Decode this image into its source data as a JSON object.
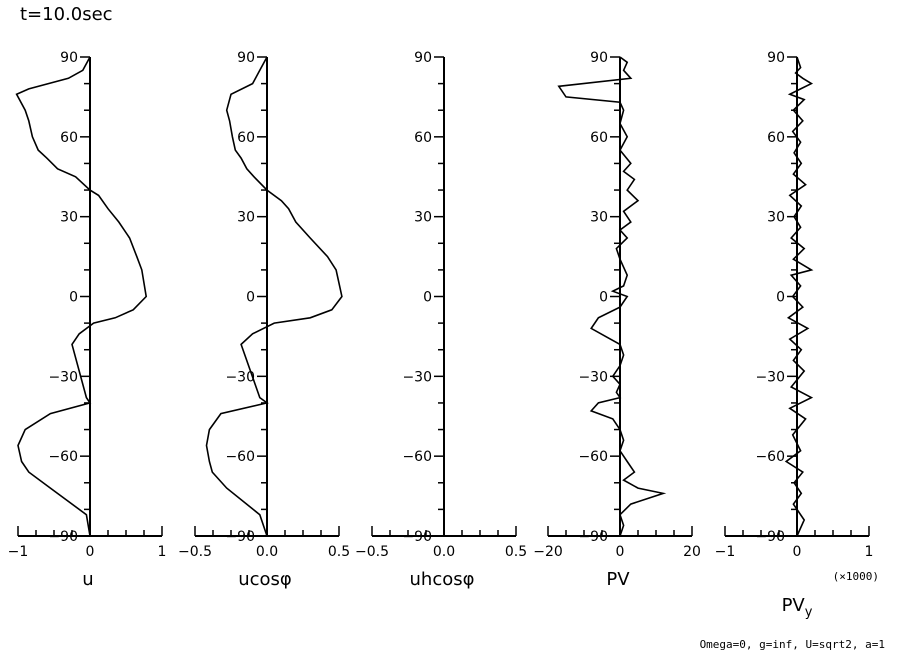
{
  "title": "t=10.0sec",
  "footer_note": "Omega=0, g=inf, U=sqrt2, a=1",
  "chart_data": [
    {
      "type": "line",
      "xlabel": "u",
      "xlim": [
        -1,
        1
      ],
      "xticks": [
        -1,
        0,
        1
      ],
      "xtick_labels": [
        "−1",
        "0",
        "1"
      ],
      "ylim": [
        -90,
        90
      ],
      "yticks": [
        -90,
        -60,
        -30,
        0,
        30,
        60,
        90
      ],
      "ytick_labels": [
        "−90",
        "−60",
        "−30",
        "0",
        "30",
        "60",
        "90"
      ],
      "x_scale_note": "",
      "series": [
        {
          "x": [
            0,
            -0.1,
            -0.3,
            -0.85,
            -1.02,
            -0.9,
            -0.85,
            -0.8,
            -0.72,
            -0.6,
            -0.45,
            -0.2,
            0,
            0.12,
            0.25,
            0.4,
            0.55,
            0.65,
            0.72,
            0.78,
            0.6,
            0.35,
            0.05,
            -0.15,
            -0.25,
            -0.05,
            0,
            -0.55,
            -0.9,
            -1.0,
            -0.95,
            -0.85,
            -0.55,
            -0.05,
            0
          ],
          "y": [
            90,
            85,
            82,
            78,
            76,
            70,
            66,
            60,
            55,
            52,
            48,
            45,
            40,
            38,
            33,
            28,
            22,
            15,
            10,
            0,
            -5,
            -8,
            -10,
            -14,
            -18,
            -38,
            -40,
            -44,
            -50,
            -56,
            -62,
            -66,
            -72,
            -82,
            -90
          ]
        }
      ]
    },
    {
      "type": "line",
      "xlabel": "ucosφ",
      "xlim": [
        -0.5,
        0.5
      ],
      "xticks": [
        -0.5,
        0.0,
        0.5
      ],
      "xtick_labels": [
        "−0.5",
        "0.0",
        "0.5"
      ],
      "ylim": [
        -90,
        90
      ],
      "yticks": [
        -90,
        -60,
        -30,
        0,
        30,
        60,
        90
      ],
      "ytick_labels": [
        "−90",
        "−60",
        "−30",
        "0",
        "30",
        "60",
        "90"
      ],
      "x_scale_note": "",
      "series": [
        {
          "x": [
            0,
            -0.05,
            -0.1,
            -0.25,
            -0.28,
            -0.26,
            -0.24,
            -0.22,
            -0.18,
            -0.14,
            -0.09,
            0,
            0.1,
            0.15,
            0.2,
            0.3,
            0.42,
            0.48,
            0.5,
            0.52,
            0.45,
            0.3,
            0.05,
            -0.1,
            -0.18,
            -0.05,
            0,
            -0.32,
            -0.4,
            -0.42,
            -0.4,
            -0.38,
            -0.28,
            -0.05,
            0
          ],
          "y": [
            90,
            85,
            80,
            76,
            70,
            66,
            60,
            55,
            52,
            48,
            45,
            40,
            36,
            33,
            28,
            22,
            15,
            10,
            5,
            0,
            -5,
            -8,
            -10,
            -14,
            -18,
            -38,
            -40,
            -44,
            -50,
            -56,
            -62,
            -66,
            -72,
            -82,
            -90
          ]
        }
      ]
    },
    {
      "type": "line",
      "xlabel": "uhcosφ",
      "xlim": [
        -0.5,
        0.5
      ],
      "xticks": [
        -0.5,
        0.0,
        0.5
      ],
      "xtick_labels": [
        "−0.5",
        "0.0",
        "0.5"
      ],
      "ylim": [
        -90,
        90
      ],
      "yticks": [
        -90,
        -60,
        -30,
        0,
        30,
        60,
        90
      ],
      "ytick_labels": [
        "−90",
        "−60",
        "−30",
        "0",
        "30",
        "60",
        "90"
      ],
      "x_scale_note": "",
      "series": [
        {
          "x": [
            0,
            0
          ],
          "y": [
            -90,
            90
          ]
        }
      ]
    },
    {
      "type": "line",
      "xlabel": "PV",
      "xlim": [
        -20,
        20
      ],
      "xticks": [
        -20,
        0,
        20
      ],
      "xtick_labels": [
        "−20",
        "0",
        "20"
      ],
      "ylim": [
        -90,
        90
      ],
      "yticks": [
        -90,
        -60,
        -30,
        0,
        30,
        60,
        90
      ],
      "ytick_labels": [
        "−90",
        "−60",
        "−30",
        "0",
        "30",
        "60",
        "90"
      ],
      "x_scale_note": "",
      "series": [
        {
          "x": [
            0,
            2,
            1,
            3,
            -17,
            -15,
            0,
            1,
            0,
            2,
            0,
            3,
            1,
            4,
            2,
            5,
            1,
            3,
            0,
            2,
            -1,
            0,
            2,
            1,
            -2,
            2,
            0,
            -6,
            -8,
            -4,
            0,
            1,
            0,
            -2,
            0,
            -1,
            0,
            -6,
            -8,
            -2,
            0,
            1,
            0,
            2,
            4,
            1,
            5,
            12,
            3,
            0,
            1,
            0
          ],
          "y": [
            90,
            88,
            85,
            82,
            79,
            75,
            73,
            70,
            65,
            60,
            55,
            50,
            47,
            44,
            40,
            36,
            32,
            28,
            25,
            22,
            18,
            14,
            8,
            4,
            2,
            0,
            -4,
            -8,
            -12,
            -15,
            -18,
            -22,
            -26,
            -30,
            -33,
            -36,
            -38,
            -40,
            -43,
            -46,
            -50,
            -54,
            -58,
            -62,
            -66,
            -69,
            -72,
            -74,
            -78,
            -82,
            -86,
            -90
          ]
        }
      ]
    },
    {
      "type": "line",
      "xlabel": "PV",
      "xlabel_sub": "y",
      "xlim": [
        -1,
        1
      ],
      "xticks": [
        -1,
        0,
        1
      ],
      "xtick_labels": [
        "−1",
        "0",
        "1"
      ],
      "ylim": [
        -90,
        90
      ],
      "yticks": [
        -90,
        -60,
        -30,
        0,
        30,
        60,
        90
      ],
      "ytick_labels": [
        "−90",
        "−60",
        "−30",
        "0",
        "30",
        "60",
        "90"
      ],
      "x_scale_note": "(×1000)",
      "series": [
        {
          "x": [
            0,
            0.05,
            -0.02,
            0.08,
            0.2,
            0.05,
            -0.1,
            0.1,
            -0.05,
            0.08,
            -0.06,
            0.05,
            -0.04,
            0.06,
            -0.05,
            0.12,
            -0.1,
            0.06,
            -0.04,
            0.05,
            -0.08,
            0.1,
            -0.05,
            0.2,
            -0.08,
            0.05,
            -0.06,
            0.08,
            -0.12,
            0.15,
            -0.1,
            0.06,
            -0.05,
            0.1,
            -0.08,
            0.2,
            -0.1,
            0.12,
            -0.06,
            0.05,
            -0.15,
            0.08,
            -0.04,
            0.06,
            -0.05,
            0.1,
            0
          ],
          "y": [
            90,
            86,
            84,
            82,
            80,
            78,
            76,
            74,
            70,
            66,
            62,
            58,
            54,
            50,
            46,
            42,
            38,
            34,
            30,
            26,
            22,
            18,
            14,
            10,
            8,
            4,
            0,
            -4,
            -8,
            -12,
            -16,
            -20,
            -24,
            -28,
            -34,
            -38,
            -42,
            -46,
            -52,
            -58,
            -62,
            -66,
            -70,
            -74,
            -78,
            -84,
            -90
          ]
        }
      ]
    }
  ]
}
